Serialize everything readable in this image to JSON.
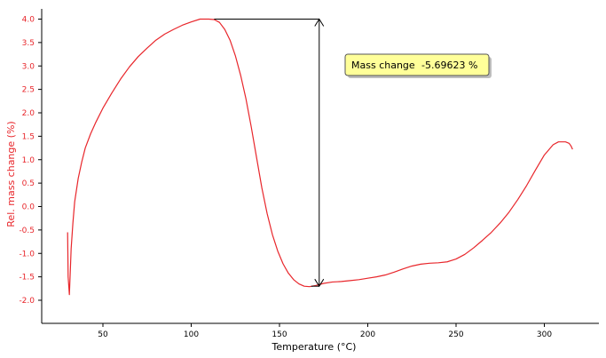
{
  "chart_data": {
    "type": "line",
    "title": "",
    "xlabel": "Temperature (°C)",
    "ylabel": "Rel. mass change (%)",
    "xlim": [
      10,
      330
    ],
    "ylim": [
      -2.5,
      4.2
    ],
    "x_ticks": [
      50,
      100,
      150,
      200,
      250,
      300
    ],
    "x_tick_labels": [
      "50",
      "100",
      "150",
      "200",
      "250",
      "300"
    ],
    "y_ticks": [
      -2.0,
      -1.5,
      -1.0,
      -0.5,
      0.0,
      0.5,
      1.0,
      1.5,
      2.0,
      2.5,
      3.0,
      3.5,
      4.0
    ],
    "y_tick_labels": [
      "-2.0",
      "-1.5",
      "-1.0",
      "-0.5",
      "0.0",
      "0.5",
      "1.0",
      "1.5",
      "2.0",
      "2.5",
      "3.0",
      "3.5",
      "4.0"
    ],
    "grid": false,
    "series": [
      {
        "color": "#e8262b",
        "x": [
          30,
          30.3,
          31,
          31.5,
          32,
          33,
          34,
          36,
          38,
          40,
          43,
          46,
          50,
          55,
          60,
          65,
          70,
          75,
          80,
          85,
          90,
          95,
          100,
          105,
          110,
          113,
          116,
          119,
          122,
          125,
          128,
          131,
          134,
          137,
          140,
          143,
          146,
          149,
          152,
          155,
          158,
          161,
          164,
          167,
          170,
          175,
          180,
          185,
          190,
          195,
          200,
          205,
          210,
          215,
          220,
          225,
          230,
          235,
          240,
          245,
          250,
          255,
          260,
          265,
          270,
          275,
          280,
          285,
          290,
          295,
          300,
          305,
          308,
          310,
          312,
          314,
          315,
          316
        ],
        "y": [
          -0.55,
          -1.5,
          -1.88,
          -1.4,
          -0.9,
          -0.35,
          0.1,
          0.6,
          0.95,
          1.25,
          1.55,
          1.8,
          2.1,
          2.42,
          2.72,
          2.98,
          3.2,
          3.38,
          3.55,
          3.68,
          3.78,
          3.87,
          3.94,
          4.0,
          4.0,
          3.99,
          3.93,
          3.78,
          3.55,
          3.22,
          2.8,
          2.3,
          1.7,
          1.05,
          0.4,
          -0.15,
          -0.6,
          -0.95,
          -1.22,
          -1.42,
          -1.56,
          -1.65,
          -1.7,
          -1.71,
          -1.69,
          -1.64,
          -1.61,
          -1.6,
          -1.58,
          -1.56,
          -1.53,
          -1.5,
          -1.46,
          -1.4,
          -1.33,
          -1.27,
          -1.23,
          -1.21,
          -1.2,
          -1.18,
          -1.12,
          -1.02,
          -0.88,
          -0.72,
          -0.55,
          -0.35,
          -0.12,
          0.15,
          0.45,
          0.78,
          1.1,
          1.32,
          1.38,
          1.38,
          1.38,
          1.35,
          1.3,
          1.22
        ]
      }
    ],
    "annotations": [
      {
        "type": "mass-change-arrow",
        "label": "Mass change",
        "value": "-5.69623 %",
        "x": 172.5,
        "y_top": 4.0,
        "y_bottom": -1.7,
        "x_top_start": 113,
        "x_bottom_start": 168
      }
    ],
    "colors": {
      "curve": "#e8262b",
      "axis_text": "#e8262b",
      "axis_line": "#000000",
      "annotation_line": "#000000",
      "annotation_box_fill": "#ffff99",
      "annotation_box_border": "#555555",
      "annotation_box_shadow": "#bdbdbd"
    }
  }
}
